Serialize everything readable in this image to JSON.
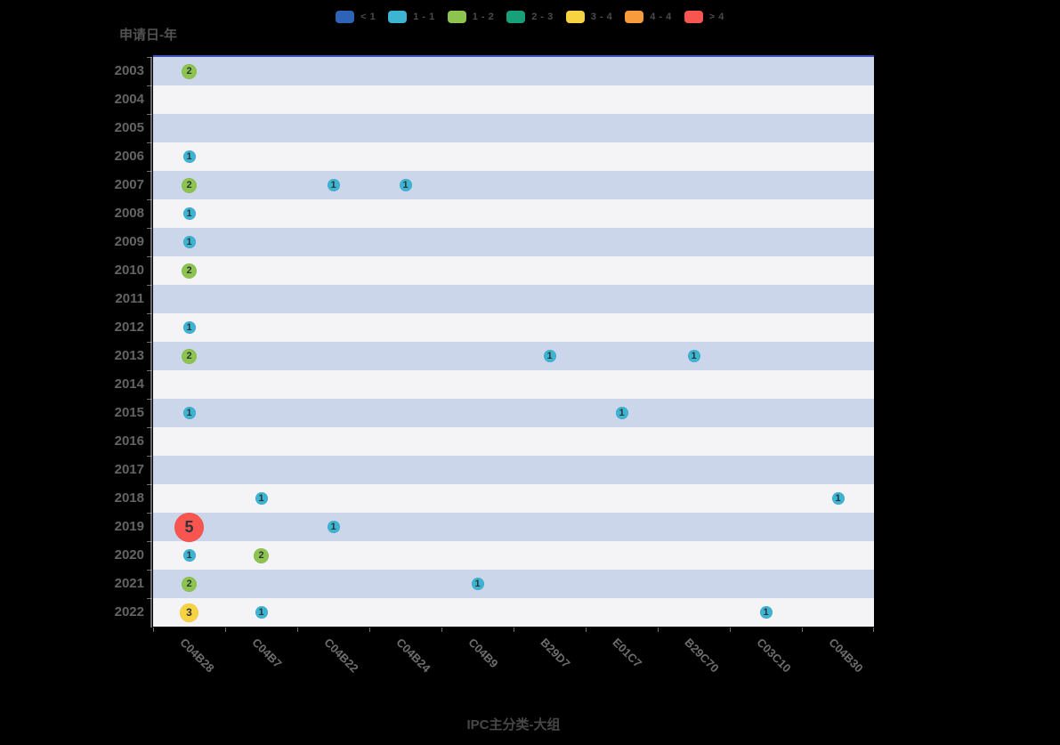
{
  "chart_data": {
    "type": "scatter",
    "subtype": "punchcard-bubble",
    "title": "",
    "xlabel": "IPC主分类-大组",
    "ylabel": "申请日-年",
    "x_categories": [
      "C04B28",
      "C04B7",
      "C04B22",
      "C04B24",
      "C04B9",
      "B29D7",
      "E01C7",
      "B29C70",
      "C03C10",
      "C04B30"
    ],
    "y_categories": [
      "2003",
      "2004",
      "2005",
      "2006",
      "2007",
      "2008",
      "2009",
      "2010",
      "2011",
      "2012",
      "2013",
      "2014",
      "2015",
      "2016",
      "2017",
      "2018",
      "2019",
      "2020",
      "2021",
      "2022"
    ],
    "legend_position": "top-center",
    "legend": [
      {
        "label": "< 1",
        "color": "#2d64b8"
      },
      {
        "label": "1 - 1",
        "color": "#3cb4d2"
      },
      {
        "label": "1 - 2",
        "color": "#8dc450"
      },
      {
        "label": "2 - 3",
        "color": "#17a079"
      },
      {
        "label": "3 - 4",
        "color": "#f7d342"
      },
      {
        "label": "4 - 4",
        "color": "#f89b3d"
      },
      {
        "label": "> 4",
        "color": "#f85551"
      }
    ],
    "points": [
      {
        "year": "2003",
        "ipc": "C04B28",
        "value": 2
      },
      {
        "year": "2006",
        "ipc": "C04B28",
        "value": 1
      },
      {
        "year": "2007",
        "ipc": "C04B28",
        "value": 2
      },
      {
        "year": "2007",
        "ipc": "C04B22",
        "value": 1
      },
      {
        "year": "2007",
        "ipc": "C04B24",
        "value": 1
      },
      {
        "year": "2008",
        "ipc": "C04B28",
        "value": 1
      },
      {
        "year": "2009",
        "ipc": "C04B28",
        "value": 1
      },
      {
        "year": "2010",
        "ipc": "C04B28",
        "value": 2
      },
      {
        "year": "2012",
        "ipc": "C04B28",
        "value": 1
      },
      {
        "year": "2013",
        "ipc": "C04B28",
        "value": 2
      },
      {
        "year": "2013",
        "ipc": "B29D7",
        "value": 1
      },
      {
        "year": "2013",
        "ipc": "B29C70",
        "value": 1
      },
      {
        "year": "2015",
        "ipc": "C04B28",
        "value": 1
      },
      {
        "year": "2015",
        "ipc": "E01C7",
        "value": 1
      },
      {
        "year": "2018",
        "ipc": "C04B7",
        "value": 1
      },
      {
        "year": "2018",
        "ipc": "C04B30",
        "value": 1
      },
      {
        "year": "2019",
        "ipc": "C04B28",
        "value": 5
      },
      {
        "year": "2019",
        "ipc": "C04B22",
        "value": 1
      },
      {
        "year": "2020",
        "ipc": "C04B28",
        "value": 1
      },
      {
        "year": "2020",
        "ipc": "C04B7",
        "value": 2
      },
      {
        "year": "2021",
        "ipc": "C04B28",
        "value": 2
      },
      {
        "year": "2021",
        "ipc": "C04B9",
        "value": 1
      },
      {
        "year": "2022",
        "ipc": "C04B28",
        "value": 3
      },
      {
        "year": "2022",
        "ipc": "C04B7",
        "value": 1
      },
      {
        "year": "2022",
        "ipc": "C03C10",
        "value": 1
      }
    ],
    "value_colors": {
      "1": "#3cb4d2",
      "2": "#8dc450",
      "3": "#f7d342",
      "5": "#f85551"
    },
    "style": {
      "background": "#000000",
      "band_even": "#ccd6ea",
      "band_odd": "#f4f4f6",
      "plot_top_border": "#4053b4",
      "bubble_number_color": "#2e3338"
    }
  }
}
